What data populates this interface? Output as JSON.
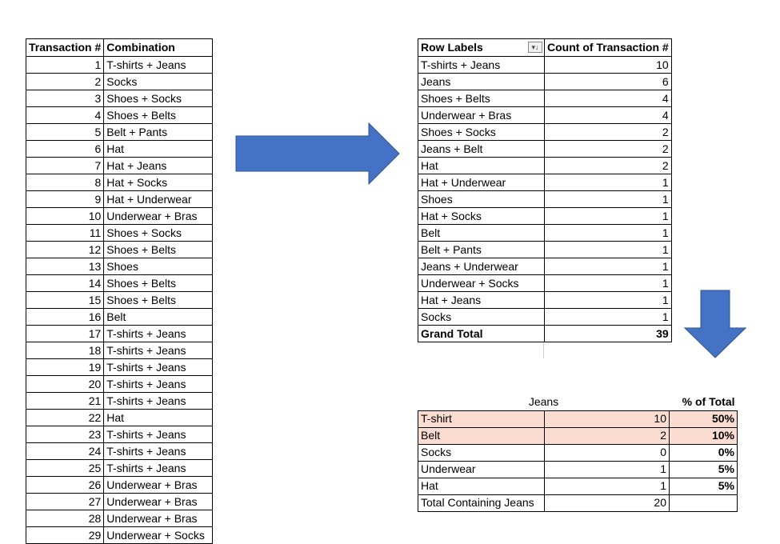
{
  "colors": {
    "arrow_fill": "#4472C4",
    "arrow_stroke": "#2F528F",
    "highlight": "#FBDCD0"
  },
  "transactions": {
    "headers": [
      "Transaction #",
      "Combination"
    ],
    "rows": [
      {
        "n": "1",
        "combo": "T-shirts + Jeans"
      },
      {
        "n": "2",
        "combo": "Socks"
      },
      {
        "n": "3",
        "combo": "Shoes + Socks"
      },
      {
        "n": "4",
        "combo": "Shoes + Belts"
      },
      {
        "n": "5",
        "combo": "Belt + Pants"
      },
      {
        "n": "6",
        "combo": "Hat"
      },
      {
        "n": "7",
        "combo": "Hat + Jeans"
      },
      {
        "n": "8",
        "combo": "Hat + Socks"
      },
      {
        "n": "9",
        "combo": "Hat + Underwear"
      },
      {
        "n": "10",
        "combo": "Underwear + Bras"
      },
      {
        "n": "11",
        "combo": "Shoes + Socks"
      },
      {
        "n": "12",
        "combo": "Shoes + Belts"
      },
      {
        "n": "13",
        "combo": "Shoes"
      },
      {
        "n": "14",
        "combo": "Shoes + Belts"
      },
      {
        "n": "15",
        "combo": "Shoes + Belts"
      },
      {
        "n": "16",
        "combo": "Belt"
      },
      {
        "n": "17",
        "combo": "T-shirts + Jeans"
      },
      {
        "n": "18",
        "combo": "T-shirts + Jeans"
      },
      {
        "n": "19",
        "combo": "T-shirts + Jeans"
      },
      {
        "n": "20",
        "combo": "T-shirts + Jeans"
      },
      {
        "n": "21",
        "combo": "T-shirts + Jeans"
      },
      {
        "n": "22",
        "combo": "Hat"
      },
      {
        "n": "23",
        "combo": "T-shirts + Jeans"
      },
      {
        "n": "24",
        "combo": "T-shirts + Jeans"
      },
      {
        "n": "25",
        "combo": "T-shirts + Jeans"
      },
      {
        "n": "26",
        "combo": "Underwear + Bras"
      },
      {
        "n": "27",
        "combo": "Underwear + Bras"
      },
      {
        "n": "28",
        "combo": "Underwear + Bras"
      },
      {
        "n": "29",
        "combo": "Underwear + Socks"
      }
    ]
  },
  "pivot": {
    "headers": [
      "Row Labels",
      "Count of Transaction #"
    ],
    "filter_icon": "filter-sort-dropdown-icon",
    "rows": [
      {
        "label": "T-shirts + Jeans",
        "count": "10"
      },
      {
        "label": "Jeans",
        "count": "6"
      },
      {
        "label": "Shoes + Belts",
        "count": "4"
      },
      {
        "label": "Underwear + Bras",
        "count": "4"
      },
      {
        "label": "Shoes + Socks",
        "count": "2"
      },
      {
        "label": "Jeans + Belt",
        "count": "2"
      },
      {
        "label": "Hat",
        "count": "2"
      },
      {
        "label": "Hat + Underwear",
        "count": "1"
      },
      {
        "label": "Shoes",
        "count": "1"
      },
      {
        "label": "Hat + Socks",
        "count": "1"
      },
      {
        "label": "Belt",
        "count": "1"
      },
      {
        "label": "Belt + Pants",
        "count": "1"
      },
      {
        "label": "Jeans + Underwear",
        "count": "1"
      },
      {
        "label": "Underwear + Socks",
        "count": "1"
      },
      {
        "label": "Hat + Jeans",
        "count": "1"
      },
      {
        "label": "Socks",
        "count": "1"
      }
    ],
    "total": {
      "label": "Grand Total",
      "count": "39"
    }
  },
  "jeans": {
    "title": "Jeans",
    "pct_header": "% of Total",
    "rows": [
      {
        "item": "T-shirt",
        "count": "10",
        "pct": "50%",
        "highlight": true
      },
      {
        "item": "Belt",
        "count": "2",
        "pct": "10%",
        "highlight": true
      },
      {
        "item": "Socks",
        "count": "0",
        "pct": "0%",
        "highlight": false
      },
      {
        "item": "Underwear",
        "count": "1",
        "pct": "5%",
        "highlight": false
      },
      {
        "item": "Hat",
        "count": "1",
        "pct": "5%",
        "highlight": false
      }
    ],
    "total": {
      "item": "Total Containing Jeans",
      "count": "20",
      "pct": ""
    }
  }
}
